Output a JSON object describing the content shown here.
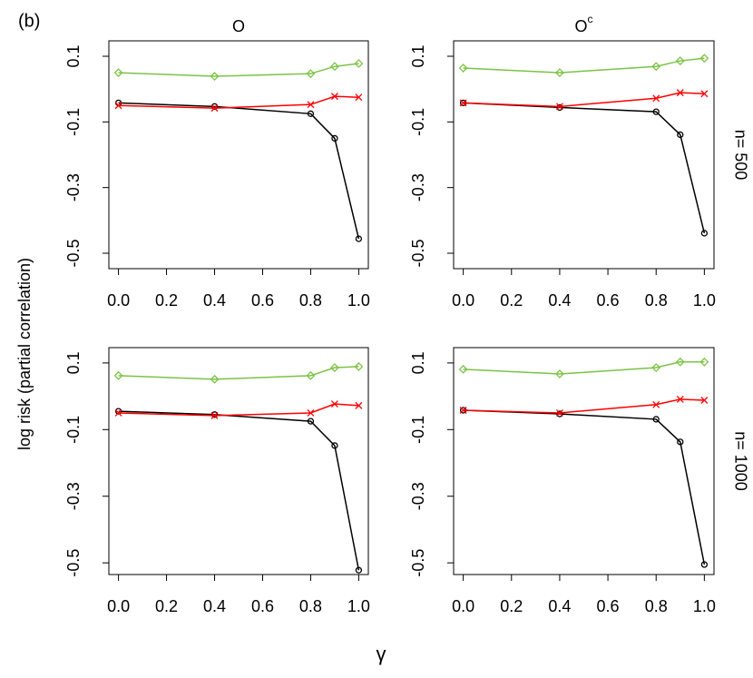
{
  "figure_label": "(b)",
  "ylabel": "log risk (partial correlation)",
  "xlabel": "γ",
  "chart_data": [
    {
      "type": "line",
      "title": "O",
      "x": [
        0,
        0.4,
        0.8,
        0.9,
        1.0
      ],
      "xlim": [
        -0.04,
        1.04
      ],
      "xticks": [
        {
          "value": 0,
          "label": "0.0"
        },
        0.2,
        0.4,
        0.6,
        0.8,
        {
          "value": 1,
          "label": "1.0"
        }
      ],
      "ylim": [
        -0.547,
        0.147
      ],
      "yticks": [
        0.1,
        -0.1,
        -0.3,
        -0.5
      ],
      "series": [
        {
          "color": "#7cc344",
          "marker": "diamond",
          "values": [
            0.05,
            0.039,
            0.047,
            0.069,
            0.078
          ]
        },
        {
          "color": "#000000",
          "marker": "circle",
          "values": [
            -0.042,
            -0.053,
            -0.075,
            -0.15,
            -0.456
          ]
        },
        {
          "color": "#ff0000",
          "marker": "x",
          "values": [
            -0.05,
            -0.058,
            -0.047,
            -0.022,
            -0.025
          ]
        }
      ]
    },
    {
      "type": "line",
      "title": "O",
      "title_sup": "c",
      "row_label": "n= 500",
      "x": [
        0,
        0.4,
        0.8,
        0.9,
        1.0
      ],
      "xlim": [
        -0.04,
        1.04
      ],
      "xticks": [
        {
          "value": 0,
          "label": "0.0"
        },
        0.2,
        0.4,
        0.6,
        0.8,
        {
          "value": 1,
          "label": "1.0"
        }
      ],
      "ylim": [
        -0.547,
        0.147
      ],
      "yticks": [
        0.1,
        -0.1,
        -0.3,
        -0.5
      ],
      "series": [
        {
          "color": "#7cc344",
          "marker": "diamond",
          "values": [
            0.064,
            0.05,
            0.069,
            0.086,
            0.094
          ]
        },
        {
          "color": "#000000",
          "marker": "circle",
          "values": [
            -0.042,
            -0.056,
            -0.069,
            -0.139,
            -0.439
          ]
        },
        {
          "color": "#ff0000",
          "marker": "x",
          "values": [
            -0.042,
            -0.053,
            -0.028,
            -0.011,
            -0.014
          ]
        }
      ]
    },
    {
      "type": "line",
      "x": [
        0,
        0.4,
        0.8,
        0.9,
        1.0
      ],
      "xlim": [
        -0.04,
        1.04
      ],
      "xticks": [
        {
          "value": 0,
          "label": "0.0"
        },
        0.2,
        0.4,
        0.6,
        0.8,
        {
          "value": 1,
          "label": "1.0"
        }
      ],
      "ylim": [
        -0.535,
        0.146
      ],
      "yticks": [
        0.1,
        -0.1,
        -0.3,
        -0.5
      ],
      "series": [
        {
          "color": "#7cc344",
          "marker": "diamond",
          "values": [
            0.062,
            0.051,
            0.062,
            0.086,
            0.089
          ]
        },
        {
          "color": "#000000",
          "marker": "circle",
          "values": [
            -0.045,
            -0.055,
            -0.075,
            -0.148,
            -0.522
          ]
        },
        {
          "color": "#ff0000",
          "marker": "x",
          "values": [
            -0.05,
            -0.058,
            -0.05,
            -0.023,
            -0.028
          ]
        }
      ]
    },
    {
      "type": "line",
      "row_label": "n= 1000",
      "x": [
        0,
        0.4,
        0.8,
        0.9,
        1.0
      ],
      "xlim": [
        -0.04,
        1.04
      ],
      "xticks": [
        {
          "value": 0,
          "label": "0.0"
        },
        0.2,
        0.4,
        0.6,
        0.8,
        {
          "value": 1,
          "label": "1.0"
        }
      ],
      "ylim": [
        -0.535,
        0.146
      ],
      "yticks": [
        0.1,
        -0.1,
        -0.3,
        -0.5
      ],
      "series": [
        {
          "color": "#7cc344",
          "marker": "diamond",
          "values": [
            0.081,
            0.067,
            0.086,
            0.103,
            0.103
          ]
        },
        {
          "color": "#000000",
          "marker": "circle",
          "values": [
            -0.042,
            -0.053,
            -0.069,
            -0.137,
            -0.505
          ]
        },
        {
          "color": "#ff0000",
          "marker": "x",
          "values": [
            -0.042,
            -0.05,
            -0.025,
            -0.009,
            -0.012
          ]
        }
      ]
    }
  ]
}
